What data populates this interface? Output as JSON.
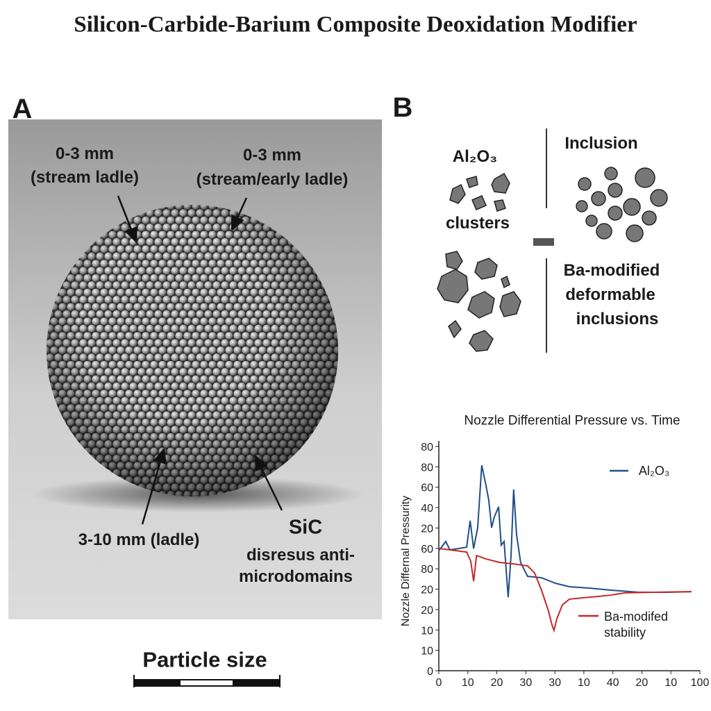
{
  "title": "Silicon-Carbide-Barium Composite Deoxidation Modifier",
  "panel_a": {
    "label": "A",
    "annotations": [
      {
        "lines": [
          "0-3 mm",
          "(stream ladle)"
        ]
      },
      {
        "lines": [
          "0-3 mm",
          "(stream/early ladle)"
        ]
      },
      {
        "lines": [
          "3-10 mm (ladle)"
        ]
      },
      {
        "lines": [
          "SiC",
          "disresus anti-",
          "microdomains"
        ]
      }
    ],
    "scale_label": "Particle size"
  },
  "panel_b": {
    "label": "B",
    "left": {
      "formula": "Al₂O₃",
      "caption": "clusters"
    },
    "right": {
      "heading": "Inclusion",
      "caption": [
        "Ba-modified",
        "deformable",
        "inclusions"
      ]
    }
  },
  "chart_data": {
    "type": "line",
    "title": "Nozzle Differential Pressure vs. Time",
    "y_label": "Nozzle Differnal Pressurity",
    "xlim": [
      0,
      90
    ],
    "ylim": [
      0,
      110
    ],
    "xticks": [
      0,
      10,
      20,
      30,
      {
        "value": 40,
        "label": "30"
      },
      {
        "value": 50,
        "label": "10"
      },
      {
        "value": 60,
        "label": "40"
      },
      {
        "value": 70,
        "label": "20"
      },
      {
        "value": 80,
        "label": "10"
      },
      {
        "value": 90,
        "label": "100"
      }
    ],
    "yticks": [
      0,
      10,
      {
        "value": 20,
        "label": "10"
      },
      {
        "value": 30,
        "label": "20"
      },
      {
        "value": 40,
        "label": "20"
      },
      {
        "value": 50,
        "label": "80"
      },
      60,
      {
        "value": 70,
        "label": "20"
      },
      {
        "value": 80,
        "label": "40"
      },
      {
        "value": 90,
        "label": "60"
      },
      {
        "value": 100,
        "label": "80"
      },
      {
        "value": 110,
        "label": "80"
      }
    ],
    "series": [
      {
        "name": "Al₂O₃",
        "color": "#1f4e8c",
        "x": [
          0,
          2.4,
          3.8,
          6.7,
          9.6,
          10.8,
          12.0,
          13.4,
          14.8,
          16.3,
          17.2,
          18.2,
          19.1,
          20.6,
          21.5,
          22.5,
          23.9,
          24.9,
          25.8,
          26.8,
          28.2,
          30.6,
          35.4,
          40.2,
          45.0,
          52.2,
          59.4,
          68.9,
          78.5,
          87.1
        ],
        "values": [
          58.9,
          63.4,
          59.3,
          59.9,
          60.6,
          73.6,
          59.9,
          70.2,
          100.8,
          90.6,
          83.8,
          70.2,
          75.3,
          80.4,
          61.6,
          63.4,
          36.1,
          56.5,
          88.9,
          66.8,
          53.1,
          46.3,
          45.6,
          42.9,
          41.2,
          40.5,
          39.5,
          38.5,
          38.5,
          38.8
        ]
      },
      {
        "name": "Ba-modifed stability",
        "color": "#c62828",
        "x": [
          0,
          9.6,
          11.0,
          12.0,
          13.0,
          16.3,
          21.1,
          25.8,
          30.6,
          33.0,
          35.4,
          37.8,
          39.0,
          39.7,
          40.7,
          42.6,
          45.0,
          49.8,
          54.6,
          59.4,
          64.1,
          73.7,
          87.1
        ],
        "values": [
          60.0,
          58.2,
          53.8,
          43.9,
          56.5,
          54.8,
          53.1,
          52.4,
          51.4,
          48.0,
          39.5,
          29.3,
          22.5,
          19.8,
          25.5,
          32.3,
          35.1,
          35.8,
          36.4,
          37.1,
          38.2,
          38.5,
          38.8
        ]
      }
    ]
  }
}
